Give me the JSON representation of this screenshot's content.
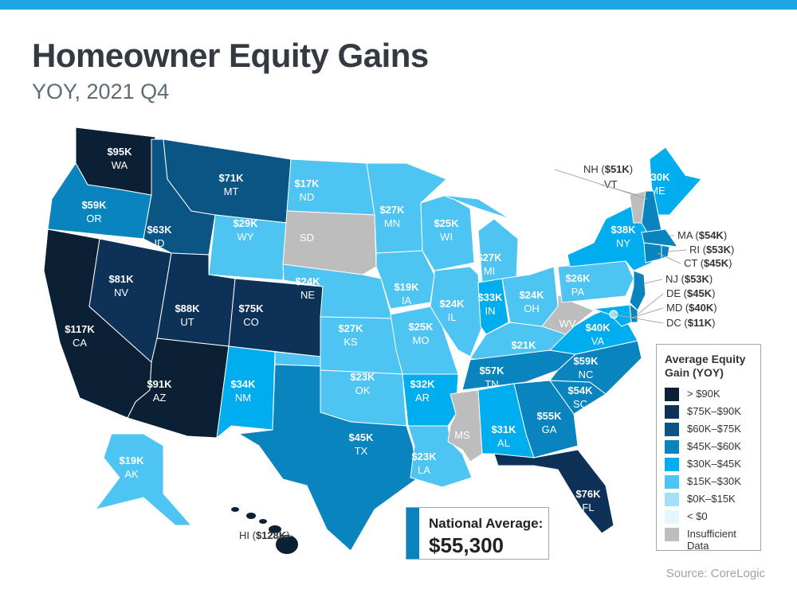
{
  "header": {
    "title": "Homeowner Equity Gains",
    "subtitle": "YOY, 2021 Q4"
  },
  "colors": {
    "bar": "#1ea6e2",
    "gt90": "#0b1f35",
    "75_90": "#0e3158",
    "60_75": "#0b5584",
    "45_60": "#0a84be",
    "30_45": "#00adef",
    "15_30": "#4ec4f3",
    "0_15": "#a4def7",
    "lt0": "#e6f6fd",
    "na": "#bdbdbd"
  },
  "legend": {
    "title": "Average Equity Gain (YOY)",
    "items": [
      {
        "label": "> $90K",
        "bin": "gt90"
      },
      {
        "label": "$75K–$90K",
        "bin": "75_90"
      },
      {
        "label": "$60K–$75K",
        "bin": "60_75"
      },
      {
        "label": "$45K–$60K",
        "bin": "45_60"
      },
      {
        "label": "$30K–$45K",
        "bin": "30_45"
      },
      {
        "label": "$15K–$30K",
        "bin": "15_30"
      },
      {
        "label": "$0K–$15K",
        "bin": "0_15"
      },
      {
        "label": "< $0",
        "bin": "lt0"
      },
      {
        "label": "Insufficient Data",
        "bin": "na"
      }
    ]
  },
  "states": [
    {
      "abbr": "WA",
      "value": "$95K",
      "bin": "gt90"
    },
    {
      "abbr": "OR",
      "value": "$59K",
      "bin": "45_60"
    },
    {
      "abbr": "CA",
      "value": "$117K",
      "bin": "gt90"
    },
    {
      "abbr": "NV",
      "value": "$81K",
      "bin": "75_90"
    },
    {
      "abbr": "ID",
      "value": "$63K",
      "bin": "60_75"
    },
    {
      "abbr": "MT",
      "value": "$71K",
      "bin": "60_75"
    },
    {
      "abbr": "WY",
      "value": "$29K",
      "bin": "15_30"
    },
    {
      "abbr": "UT",
      "value": "$88K",
      "bin": "75_90"
    },
    {
      "abbr": "AZ",
      "value": "$91K",
      "bin": "gt90"
    },
    {
      "abbr": "CO",
      "value": "$75K",
      "bin": "75_90"
    },
    {
      "abbr": "NM",
      "value": "$34K",
      "bin": "30_45"
    },
    {
      "abbr": "ND",
      "value": "$17K",
      "bin": "15_30"
    },
    {
      "abbr": "SD",
      "value": "",
      "bin": "na"
    },
    {
      "abbr": "NE",
      "value": "$24K",
      "bin": "15_30"
    },
    {
      "abbr": "KS",
      "value": "$27K",
      "bin": "15_30"
    },
    {
      "abbr": "OK",
      "value": "$23K",
      "bin": "15_30"
    },
    {
      "abbr": "TX",
      "value": "$45K",
      "bin": "45_60"
    },
    {
      "abbr": "MN",
      "value": "$27K",
      "bin": "15_30"
    },
    {
      "abbr": "IA",
      "value": "$19K",
      "bin": "15_30"
    },
    {
      "abbr": "MO",
      "value": "$25K",
      "bin": "15_30"
    },
    {
      "abbr": "AR",
      "value": "$32K",
      "bin": "30_45"
    },
    {
      "abbr": "LA",
      "value": "$23K",
      "bin": "15_30"
    },
    {
      "abbr": "WI",
      "value": "$25K",
      "bin": "15_30"
    },
    {
      "abbr": "IL",
      "value": "$24K",
      "bin": "15_30"
    },
    {
      "abbr": "MI",
      "value": "$27K",
      "bin": "15_30"
    },
    {
      "abbr": "IN",
      "value": "$33K",
      "bin": "30_45"
    },
    {
      "abbr": "OH",
      "value": "$24K",
      "bin": "15_30"
    },
    {
      "abbr": "KY",
      "value": "$21K",
      "bin": "15_30"
    },
    {
      "abbr": "TN",
      "value": "$57K",
      "bin": "45_60"
    },
    {
      "abbr": "MS",
      "value": "",
      "bin": "na"
    },
    {
      "abbr": "AL",
      "value": "$31K",
      "bin": "30_45"
    },
    {
      "abbr": "GA",
      "value": "$55K",
      "bin": "45_60"
    },
    {
      "abbr": "FL",
      "value": "$76K",
      "bin": "75_90"
    },
    {
      "abbr": "SC",
      "value": "$54K",
      "bin": "45_60"
    },
    {
      "abbr": "NC",
      "value": "$59K",
      "bin": "45_60"
    },
    {
      "abbr": "VA",
      "value": "$40K",
      "bin": "30_45"
    },
    {
      "abbr": "WV",
      "value": "",
      "bin": "na"
    },
    {
      "abbr": "PA",
      "value": "$26K",
      "bin": "15_30"
    },
    {
      "abbr": "NY",
      "value": "$38K",
      "bin": "30_45"
    },
    {
      "abbr": "ME",
      "value": "$30K",
      "bin": "30_45"
    },
    {
      "abbr": "AK",
      "value": "$19K",
      "bin": "15_30"
    },
    {
      "abbr": "VT",
      "value": "",
      "bin": "na"
    },
    {
      "abbr": "NH",
      "value": "$51K",
      "bin": "45_60"
    },
    {
      "abbr": "MA",
      "value": "$54K",
      "bin": "45_60"
    },
    {
      "abbr": "RI",
      "value": "$53K",
      "bin": "45_60"
    },
    {
      "abbr": "CT",
      "value": "$45K",
      "bin": "45_60"
    },
    {
      "abbr": "NJ",
      "value": "$53K",
      "bin": "45_60"
    },
    {
      "abbr": "DE",
      "value": "$45K",
      "bin": "45_60"
    },
    {
      "abbr": "MD",
      "value": "$40K",
      "bin": "30_45"
    },
    {
      "abbr": "DC",
      "value": "$11K",
      "bin": "0_15"
    },
    {
      "abbr": "HI",
      "value": "$128K",
      "bin": "gt90"
    }
  ],
  "national_average": {
    "label": "National Average:",
    "value": "$55,300"
  },
  "source": "Source: CoreLogic"
}
